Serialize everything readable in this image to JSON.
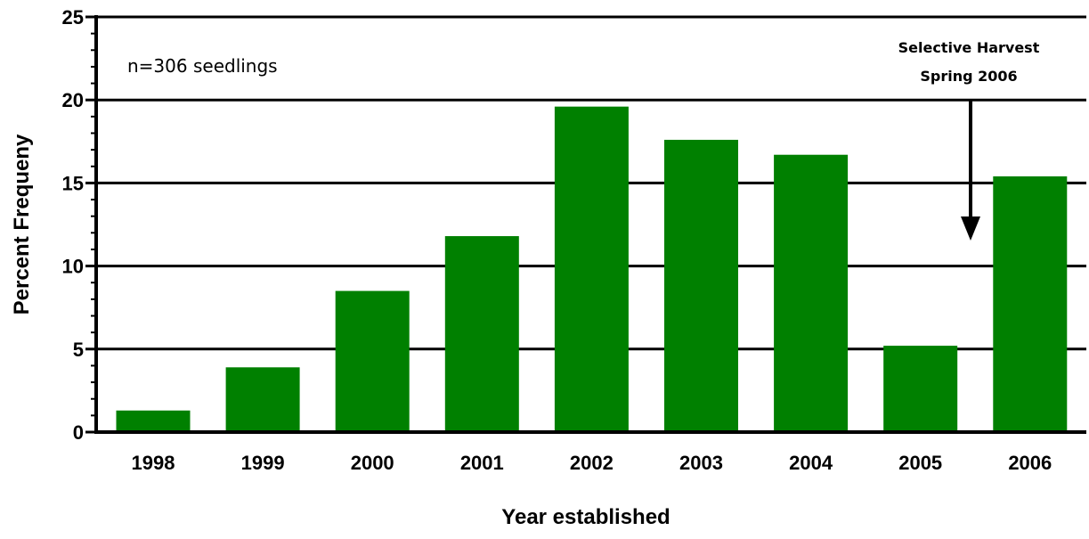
{
  "chart_data": {
    "type": "bar",
    "title": "",
    "xlabel": "Year established",
    "ylabel": "Percent Frequeny",
    "categories": [
      "1998",
      "1999",
      "2000",
      "2001",
      "2002",
      "2003",
      "2004",
      "2005",
      "2006"
    ],
    "values": [
      1.3,
      3.9,
      8.5,
      11.8,
      19.6,
      17.6,
      16.7,
      5.2,
      15.4
    ],
    "ylim": [
      0,
      25
    ],
    "yticks": [
      0,
      5,
      10,
      15,
      20,
      25
    ],
    "grid": true,
    "bar_color": "#008000",
    "annotations": {
      "sample_size": "n=306 seedlings",
      "harvest_line1": "Selective Harvest",
      "harvest_line2": "Spring 2006"
    }
  }
}
